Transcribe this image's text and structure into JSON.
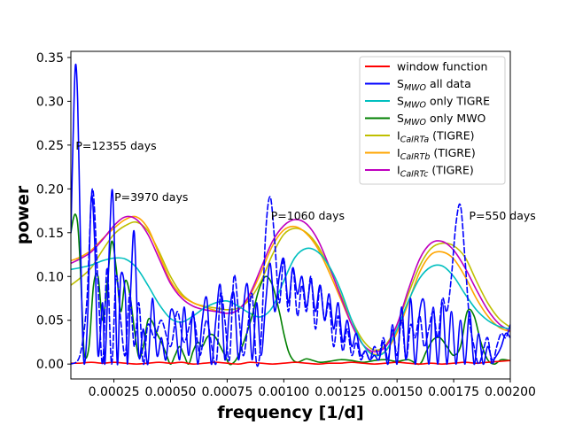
{
  "chart_data": {
    "type": "line",
    "title": "",
    "xlabel": "frequency [1/d]",
    "ylabel": "power",
    "xlim": [
      6e-05,
      0.002
    ],
    "ylim": [
      -0.017,
      0.357
    ],
    "xticks": [
      0.00025,
      0.0005,
      0.00075,
      0.001,
      0.00125,
      0.0015,
      0.00175,
      0.002
    ],
    "xtick_labels": [
      "0.00025",
      "0.00050",
      "0.00075",
      "0.00100",
      "0.00125",
      "0.00150",
      "0.00175",
      "0.00200"
    ],
    "yticks": [
      0.0,
      0.05,
      0.1,
      0.15,
      0.2,
      0.25,
      0.3,
      0.35
    ],
    "ytick_labels": [
      "0.00",
      "0.05",
      "0.10",
      "0.15",
      "0.20",
      "0.25",
      "0.30",
      "0.35"
    ],
    "grid": false,
    "legend_position": "top-right",
    "legend": [
      {
        "label": "window function",
        "color": "#ff0000"
      },
      {
        "label": "S_MWO all data",
        "color": "#0000ff"
      },
      {
        "label": "S_MWO only TIGRE",
        "color": "#00bfbf"
      },
      {
        "label": "S_MWO only MWO",
        "color": "#008000"
      },
      {
        "label": "I_CaIRTa (TIGRE)",
        "color": "#bfbf00"
      },
      {
        "label": "I_CaIRTb (TIGRE)",
        "color": "#ffa500"
      },
      {
        "label": "I_CaIRTc (TIGRE)",
        "color": "#bf00bf"
      }
    ],
    "annotations": [
      {
        "text": "P=12355 days",
        "x": 8.1e-05,
        "y": 0.25
      },
      {
        "text": "P=3970 days",
        "x": 0.000252,
        "y": 0.191
      },
      {
        "text": "P=1060 days",
        "x": 0.000943,
        "y": 0.17
      },
      {
        "text": "P=550 days",
        "x": 0.001818,
        "y": 0.17
      }
    ],
    "series": [
      {
        "name": "window function",
        "color": "#ff0000",
        "dash": false,
        "x": [
          6e-05,
          0.0001,
          0.00015,
          0.0002,
          0.00025,
          0.0003,
          0.00035,
          0.0004,
          0.00045,
          0.0005,
          0.00055,
          0.0006,
          0.00065,
          0.0007,
          0.00075,
          0.0008,
          0.00085,
          0.0009,
          0.00095,
          0.001,
          0.00105,
          0.0011,
          0.00115,
          0.0012,
          0.00125,
          0.0013,
          0.00135,
          0.0014,
          0.00145,
          0.0015,
          0.00155,
          0.0016,
          0.00165,
          0.0017,
          0.00175,
          0.0018,
          0.00185,
          0.0019,
          0.00195,
          0.002
        ],
        "y": [
          0.001,
          0.001,
          0.002,
          0.001,
          0.002,
          0.001,
          0.0,
          0.001,
          0.002,
          0.001,
          0.002,
          0.0,
          0.001,
          0.002,
          0.001,
          0.0,
          0.002,
          0.001,
          0.0,
          0.001,
          0.002,
          0.001,
          0.0,
          0.001,
          0.001,
          0.002,
          0.001,
          0.0,
          0.001,
          0.002,
          0.001,
          0.0,
          0.001,
          0.0,
          0.001,
          0.002,
          0.001,
          0.002,
          0.003,
          0.004
        ]
      },
      {
        "name": "S_MWO all data",
        "color": "#0000ff",
        "dash": false,
        "x": [
          6e-05,
          7e-05,
          8e-05,
          9e-05,
          0.0001,
          0.00011,
          0.00012,
          0.000135,
          0.00015,
          0.000165,
          0.00018,
          0.0002,
          0.00021,
          0.000225,
          0.00024,
          0.00025,
          0.000265,
          0.00028,
          0.0003,
          0.00031,
          0.000325,
          0.00034,
          0.00036,
          0.00038,
          0.0004,
          0.00042,
          0.00044,
          0.00046,
          0.00048,
          0.0005,
          0.00052,
          0.00054,
          0.00056,
          0.00058,
          0.0006,
          0.00062,
          0.00064,
          0.00066,
          0.00068,
          0.0007,
          0.00072,
          0.00074,
          0.00076,
          0.00078,
          0.0008,
          0.00082,
          0.00084,
          0.00086,
          0.00088,
          0.0009,
          0.00092,
          0.00094,
          0.00096,
          0.00098,
          0.001,
          0.00102,
          0.00104,
          0.00106,
          0.00108,
          0.0011,
          0.00112,
          0.00114,
          0.00116,
          0.00118,
          0.0012,
          0.00122,
          0.00124,
          0.00126,
          0.00128,
          0.0013,
          0.00132,
          0.00134,
          0.00136,
          0.00138,
          0.0014,
          0.00142,
          0.00144,
          0.00146,
          0.00148,
          0.0015,
          0.00152,
          0.00154,
          0.00156,
          0.00158,
          0.0016,
          0.00162,
          0.00164,
          0.00166,
          0.00168,
          0.0017,
          0.00172,
          0.00174,
          0.00176,
          0.00178,
          0.0018,
          0.00182,
          0.00184,
          0.00186,
          0.00188,
          0.0019,
          0.00192,
          0.00194,
          0.00196,
          0.00198,
          0.002
        ],
        "y": [
          0.15,
          0.26,
          0.341,
          0.3,
          0.17,
          0.05,
          0.0,
          0.06,
          0.19,
          0.14,
          0.01,
          0.07,
          0.0,
          0.1,
          0.196,
          0.16,
          0.0,
          0.1,
          0.08,
          0.0,
          0.09,
          0.15,
          0.01,
          0.04,
          0.0,
          0.075,
          0.01,
          0.03,
          0.005,
          0.06,
          0.05,
          0.005,
          0.065,
          0.01,
          0.06,
          0.0,
          0.05,
          0.075,
          0.0,
          0.05,
          0.09,
          0.005,
          0.06,
          0.08,
          0.005,
          0.06,
          0.09,
          0.005,
          0.07,
          0.01,
          0.07,
          0.115,
          0.06,
          0.1,
          0.12,
          0.07,
          0.11,
          0.08,
          0.1,
          0.065,
          0.095,
          0.06,
          0.09,
          0.05,
          0.08,
          0.04,
          0.07,
          0.025,
          0.05,
          0.02,
          0.035,
          0.01,
          0.015,
          0.005,
          0.01,
          0.005,
          0.025,
          0.0,
          0.045,
          0.0,
          0.065,
          0.005,
          0.075,
          0.0,
          0.06,
          0.07,
          0.0,
          0.065,
          0.0,
          0.07,
          0.0,
          0.06,
          0.0,
          0.05,
          0.0,
          0.06,
          0.0,
          0.035,
          0.0,
          0.02,
          0.005,
          0.01,
          0.02,
          0.035,
          0.03
        ]
      },
      {
        "name": "S_MWO all data (dashed)",
        "color": "#0000ff",
        "dash": true,
        "x": [
          6e-05,
          0.0001,
          0.00013,
          0.000155,
          0.00018,
          0.0002,
          0.00022,
          0.00024,
          0.00026,
          0.00028,
          0.0003,
          0.00032,
          0.00034,
          0.00036,
          0.00038,
          0.0004,
          0.00043,
          0.00046,
          0.0005,
          0.00053,
          0.00056,
          0.0006,
          0.00063,
          0.00066,
          0.0007,
          0.00072,
          0.00074,
          0.00076,
          0.00078,
          0.0008,
          0.00082,
          0.00084,
          0.00086,
          0.00088,
          0.0009,
          0.00092,
          0.00094,
          0.00096,
          0.00098,
          0.001,
          0.00102,
          0.00104,
          0.00106,
          0.00108,
          0.0011,
          0.00112,
          0.00114,
          0.00116,
          0.00118,
          0.0012,
          0.00122,
          0.00124,
          0.00126,
          0.00128,
          0.0013,
          0.00132,
          0.00134,
          0.00136,
          0.00138,
          0.0014,
          0.00142,
          0.00144,
          0.00146,
          0.00148,
          0.0015,
          0.00152,
          0.00154,
          0.00156,
          0.00158,
          0.0016,
          0.00162,
          0.00164,
          0.00166,
          0.00168,
          0.0017,
          0.00172,
          0.00174,
          0.00176,
          0.00178,
          0.0018,
          0.00182,
          0.00184,
          0.00186,
          0.00188,
          0.0019,
          0.00192,
          0.00194,
          0.00196,
          0.00198,
          0.002
        ],
        "y": [
          0.0,
          0.01,
          0.07,
          0.2,
          0.09,
          0.0,
          0.11,
          0.0,
          0.1,
          0.05,
          0.01,
          0.08,
          0.02,
          0.07,
          0.0,
          0.045,
          0.03,
          0.05,
          0.02,
          0.06,
          0.025,
          0.055,
          0.01,
          0.05,
          0.0,
          0.08,
          0.05,
          0.005,
          0.1,
          0.06,
          0.01,
          0.04,
          0.08,
          0.0,
          0.03,
          0.15,
          0.191,
          0.14,
          0.07,
          0.12,
          0.06,
          0.11,
          0.055,
          0.09,
          0.06,
          0.1,
          0.04,
          0.09,
          0.05,
          0.07,
          0.02,
          0.055,
          0.015,
          0.04,
          0.01,
          0.025,
          0.005,
          0.015,
          0.005,
          0.02,
          0.01,
          0.03,
          0.005,
          0.04,
          0.01,
          0.05,
          0.005,
          0.045,
          0.03,
          0.055,
          0.02,
          0.04,
          0.06,
          0.03,
          0.075,
          0.06,
          0.1,
          0.16,
          0.181,
          0.12,
          0.05,
          0.02,
          0.0,
          0.015,
          0.03,
          0.0,
          0.02,
          0.035,
          0.03,
          0.045
        ]
      },
      {
        "name": "S_MWO only TIGRE",
        "color": "#00bfbf",
        "dash": false,
        "x": [
          6e-05,
          0.0001,
          0.00015,
          0.0002,
          0.00025,
          0.0003,
          0.00035,
          0.0004,
          0.00045,
          0.0005,
          0.00055,
          0.0006,
          0.00065,
          0.0007,
          0.00075,
          0.0008,
          0.00085,
          0.0009,
          0.00095,
          0.001,
          0.00105,
          0.0011,
          0.00115,
          0.0012,
          0.00125,
          0.0013,
          0.00135,
          0.0014,
          0.00145,
          0.0015,
          0.00155,
          0.0016,
          0.00165,
          0.0017,
          0.00175,
          0.0018,
          0.00185,
          0.0019,
          0.00195,
          0.002
        ],
        "y": [
          0.108,
          0.11,
          0.113,
          0.118,
          0.121,
          0.12,
          0.11,
          0.09,
          0.068,
          0.052,
          0.048,
          0.055,
          0.064,
          0.07,
          0.072,
          0.066,
          0.058,
          0.054,
          0.065,
          0.095,
          0.122,
          0.132,
          0.128,
          0.112,
          0.085,
          0.05,
          0.022,
          0.01,
          0.015,
          0.04,
          0.072,
          0.098,
          0.111,
          0.112,
          0.1,
          0.08,
          0.062,
          0.05,
          0.043,
          0.04
        ]
      },
      {
        "name": "S_MWO only MWO",
        "color": "#008000",
        "dash": false,
        "x": [
          6e-05,
          7e-05,
          8e-05,
          9e-05,
          0.0001,
          0.00011,
          0.00012,
          0.00014,
          0.00016,
          0.00018,
          0.0002,
          0.00022,
          0.00024,
          0.00026,
          0.00028,
          0.0003,
          0.00032,
          0.00034,
          0.00036,
          0.00038,
          0.0004,
          0.00042,
          0.00044,
          0.00046,
          0.00048,
          0.0005,
          0.00052,
          0.00054,
          0.00056,
          0.00058,
          0.0006,
          0.00062,
          0.00064,
          0.00066,
          0.00068,
          0.0007,
          0.00072,
          0.00074,
          0.00076,
          0.00078,
          0.0008,
          0.00083,
          0.00086,
          0.00089,
          0.00092,
          0.00095,
          0.00098,
          0.001,
          0.00102,
          0.00104,
          0.00106,
          0.00108,
          0.0011,
          0.00113,
          0.00116,
          0.0012,
          0.00125,
          0.0013,
          0.00135,
          0.0014,
          0.00145,
          0.0015,
          0.00155,
          0.0016,
          0.00163,
          0.00166,
          0.00169,
          0.00172,
          0.00175,
          0.00178,
          0.00181,
          0.00184,
          0.00187,
          0.0019,
          0.00193,
          0.00196,
          0.002
        ],
        "y": [
          0.15,
          0.165,
          0.171,
          0.16,
          0.12,
          0.06,
          0.01,
          0.02,
          0.09,
          0.1,
          0.05,
          0.09,
          0.14,
          0.11,
          0.06,
          0.095,
          0.08,
          0.04,
          0.008,
          0.02,
          0.05,
          0.048,
          0.035,
          0.025,
          0.012,
          0.0,
          0.01,
          0.02,
          0.01,
          0.0,
          0.015,
          0.025,
          0.02,
          0.03,
          0.034,
          0.03,
          0.02,
          0.01,
          0.0,
          0.002,
          0.01,
          0.03,
          0.055,
          0.085,
          0.1,
          0.09,
          0.06,
          0.035,
          0.015,
          0.005,
          0.002,
          0.004,
          0.006,
          0.004,
          0.002,
          0.003,
          0.005,
          0.004,
          0.002,
          0.004,
          0.005,
          0.003,
          0.005,
          0.0,
          0.015,
          0.028,
          0.03,
          0.02,
          0.01,
          0.02,
          0.06,
          0.055,
          0.025,
          0.005,
          0.0,
          0.005,
          0.004
        ]
      },
      {
        "name": "I_CaIRTa (TIGRE)",
        "color": "#bfbf00",
        "dash": false,
        "x": [
          6e-05,
          0.0001,
          0.00015,
          0.0002,
          0.00025,
          0.0003,
          0.00035,
          0.0004,
          0.00045,
          0.0005,
          0.00055,
          0.0006,
          0.00065,
          0.0007,
          0.00075,
          0.0008,
          0.00085,
          0.0009,
          0.00095,
          0.001,
          0.00105,
          0.0011,
          0.00115,
          0.0012,
          0.00125,
          0.0013,
          0.00135,
          0.0014,
          0.00145,
          0.0015,
          0.00155,
          0.0016,
          0.00165,
          0.0017,
          0.00175,
          0.0018,
          0.00185,
          0.0019,
          0.00195,
          0.002
        ],
        "y": [
          0.09,
          0.098,
          0.11,
          0.13,
          0.148,
          0.158,
          0.162,
          0.152,
          0.128,
          0.1,
          0.08,
          0.07,
          0.066,
          0.064,
          0.062,
          0.064,
          0.074,
          0.095,
          0.125,
          0.148,
          0.155,
          0.15,
          0.135,
          0.11,
          0.08,
          0.05,
          0.027,
          0.016,
          0.022,
          0.045,
          0.08,
          0.112,
          0.132,
          0.138,
          0.135,
          0.122,
          0.095,
          0.07,
          0.052,
          0.042
        ]
      },
      {
        "name": "I_CaIRTb (TIGRE)",
        "color": "#ffa500",
        "dash": false,
        "x": [
          6e-05,
          0.0001,
          0.00015,
          0.0002,
          0.00025,
          0.0003,
          0.00035,
          0.0004,
          0.00045,
          0.0005,
          0.00055,
          0.0006,
          0.00065,
          0.0007,
          0.00075,
          0.0008,
          0.00085,
          0.0009,
          0.00095,
          0.001,
          0.00105,
          0.0011,
          0.00115,
          0.0012,
          0.00125,
          0.0013,
          0.00135,
          0.0014,
          0.00145,
          0.0015,
          0.00155,
          0.0016,
          0.00165,
          0.0017,
          0.00175,
          0.0018,
          0.00185,
          0.0019,
          0.00195,
          0.002
        ],
        "y": [
          0.118,
          0.122,
          0.13,
          0.143,
          0.155,
          0.165,
          0.168,
          0.155,
          0.125,
          0.095,
          0.078,
          0.07,
          0.065,
          0.061,
          0.058,
          0.062,
          0.078,
          0.105,
          0.135,
          0.153,
          0.157,
          0.149,
          0.132,
          0.105,
          0.075,
          0.045,
          0.022,
          0.011,
          0.015,
          0.036,
          0.07,
          0.105,
          0.125,
          0.128,
          0.12,
          0.1,
          0.075,
          0.055,
          0.042,
          0.037
        ]
      },
      {
        "name": "I_CaIRTc (TIGRE)",
        "color": "#bf00bf",
        "dash": false,
        "x": [
          6e-05,
          0.0001,
          0.00015,
          0.0002,
          0.00025,
          0.0003,
          0.00035,
          0.0004,
          0.00045,
          0.0005,
          0.00055,
          0.0006,
          0.00065,
          0.0007,
          0.00075,
          0.0008,
          0.00085,
          0.0009,
          0.00095,
          0.001,
          0.00105,
          0.0011,
          0.00115,
          0.0012,
          0.00125,
          0.0013,
          0.00135,
          0.0014,
          0.00145,
          0.0015,
          0.00155,
          0.0016,
          0.00165,
          0.0017,
          0.00175,
          0.0018,
          0.00185,
          0.0019,
          0.00195,
          0.002
        ],
        "y": [
          0.115,
          0.12,
          0.128,
          0.142,
          0.158,
          0.168,
          0.165,
          0.148,
          0.12,
          0.092,
          0.075,
          0.066,
          0.062,
          0.06,
          0.058,
          0.062,
          0.08,
          0.11,
          0.14,
          0.158,
          0.165,
          0.16,
          0.142,
          0.112,
          0.078,
          0.045,
          0.022,
          0.014,
          0.02,
          0.045,
          0.085,
          0.12,
          0.138,
          0.14,
          0.13,
          0.11,
          0.085,
          0.062,
          0.046,
          0.038
        ]
      }
    ]
  }
}
